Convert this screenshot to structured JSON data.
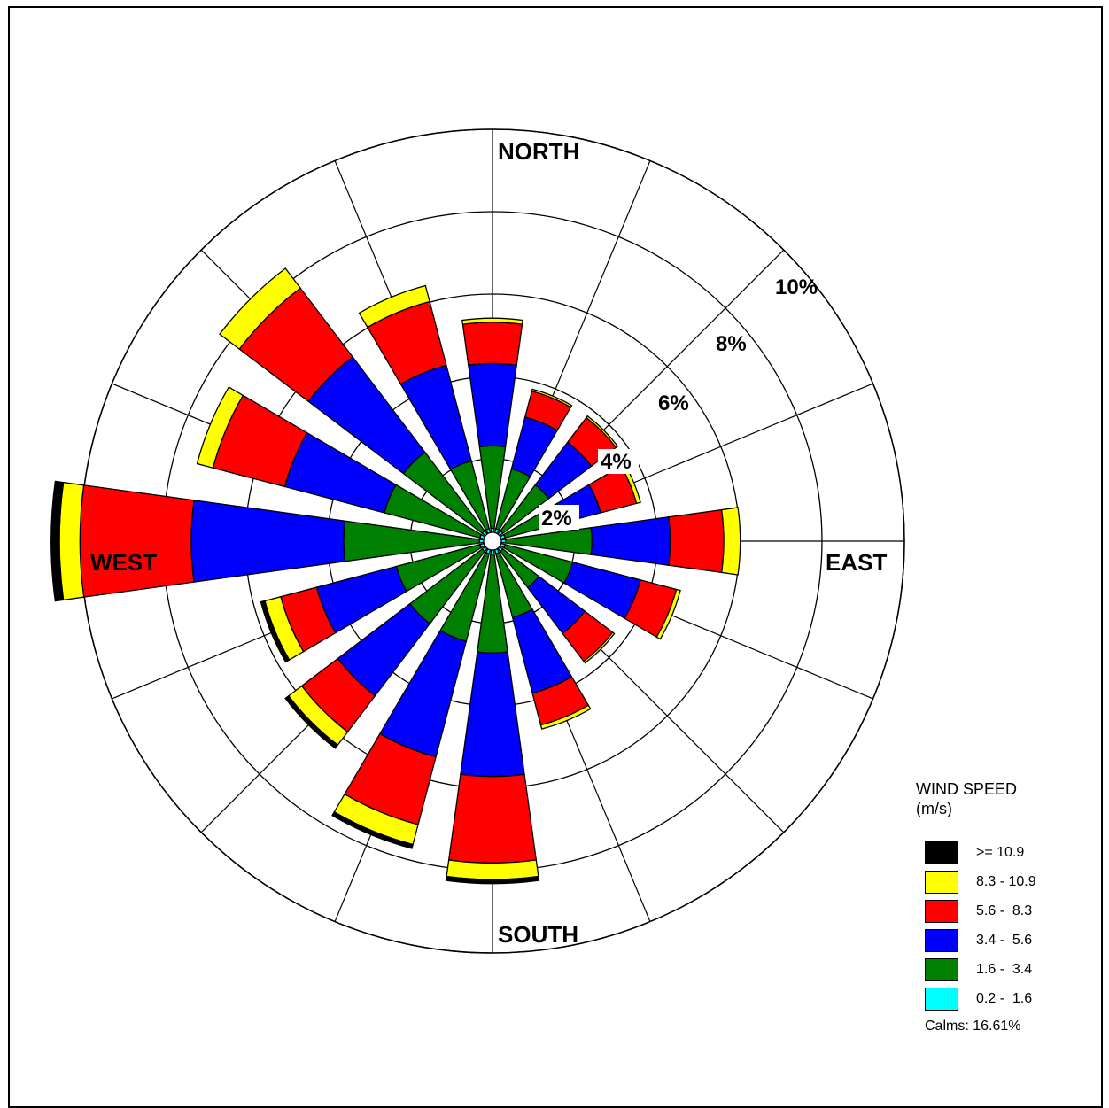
{
  "chart_data": {
    "type": "windrose",
    "legend": {
      "title_line1": "WIND SPEED",
      "title_line2": "(m/s)",
      "bins": [
        {
          "label": ">= 10.9",
          "color": "#000000"
        },
        {
          "label": "8.3 - 10.9",
          "color": "#ffff00"
        },
        {
          "label": "5.6 -  8.3",
          "color": "#ff0000"
        },
        {
          "label": "3.4 -  5.6",
          "color": "#0000ff"
        },
        {
          "label": "1.6 -  3.4",
          "color": "#008000"
        },
        {
          "label": "0.2 -  1.6",
          "color": "#00ffff"
        }
      ],
      "calms": "Calms: 16.61%"
    },
    "directions": {
      "north": "NORTH",
      "east": "EAST",
      "south": "SOUTH",
      "west": "WEST"
    },
    "ring_labels": [
      "2%",
      "4%",
      "6%",
      "8%",
      "10%"
    ],
    "rings_percent": [
      2,
      4,
      6,
      8,
      10
    ],
    "sector_count": 16,
    "sectors": [
      {
        "direction": "N",
        "cumulative_percent": [
          0.1,
          2.1,
          4.1,
          5.1,
          5.2,
          5.2
        ]
      },
      {
        "direction": "NNE",
        "cumulative_percent": [
          0.1,
          1.6,
          2.9,
          3.55,
          3.6,
          3.6
        ]
      },
      {
        "direction": "NE",
        "cumulative_percent": [
          0.1,
          1.5,
          2.8,
          3.55,
          3.6,
          3.6
        ]
      },
      {
        "direction": "ENE",
        "cumulative_percent": [
          0.1,
          1.6,
          2.5,
          3.4,
          3.5,
          3.5
        ]
      },
      {
        "direction": "E",
        "cumulative_percent": [
          0.1,
          2.2,
          4.1,
          5.4,
          5.8,
          5.8
        ]
      },
      {
        "direction": "ESE",
        "cumulative_percent": [
          0.1,
          1.8,
          3.5,
          4.4,
          4.5,
          4.5
        ]
      },
      {
        "direction": "SE",
        "cumulative_percent": [
          0.1,
          1.2,
          2.6,
          3.45,
          3.5,
          3.5
        ]
      },
      {
        "direction": "SSE",
        "cumulative_percent": [
          0.1,
          1.7,
          3.6,
          4.4,
          4.5,
          4.5
        ]
      },
      {
        "direction": "S",
        "cumulative_percent": [
          0.1,
          2.5,
          5.5,
          7.6,
          8.0,
          8.1
        ]
      },
      {
        "direction": "SSW",
        "cumulative_percent": [
          0.1,
          2.3,
          5.2,
          6.9,
          7.4,
          7.5
        ]
      },
      {
        "direction": "SW",
        "cumulative_percent": [
          0.1,
          2.3,
          4.5,
          5.6,
          6.0,
          6.1
        ]
      },
      {
        "direction": "WSW",
        "cumulative_percent": [
          0.1,
          2.2,
          4.2,
          5.1,
          5.5,
          5.6
        ]
      },
      {
        "direction": "W",
        "cumulative_percent": [
          0.1,
          3.4,
          7.1,
          9.8,
          10.3,
          10.5
        ]
      },
      {
        "direction": "WNW",
        "cumulative_percent": [
          0.1,
          2.5,
          5.0,
          6.8,
          7.2,
          7.2
        ]
      },
      {
        "direction": "NW",
        "cumulative_percent": [
          0.1,
          2.5,
          5.4,
          7.5,
          8.1,
          8.1
        ]
      },
      {
        "direction": "NNW",
        "cumulative_percent": [
          0.1,
          1.8,
          4.2,
          5.8,
          6.2,
          6.2
        ]
      }
    ]
  }
}
